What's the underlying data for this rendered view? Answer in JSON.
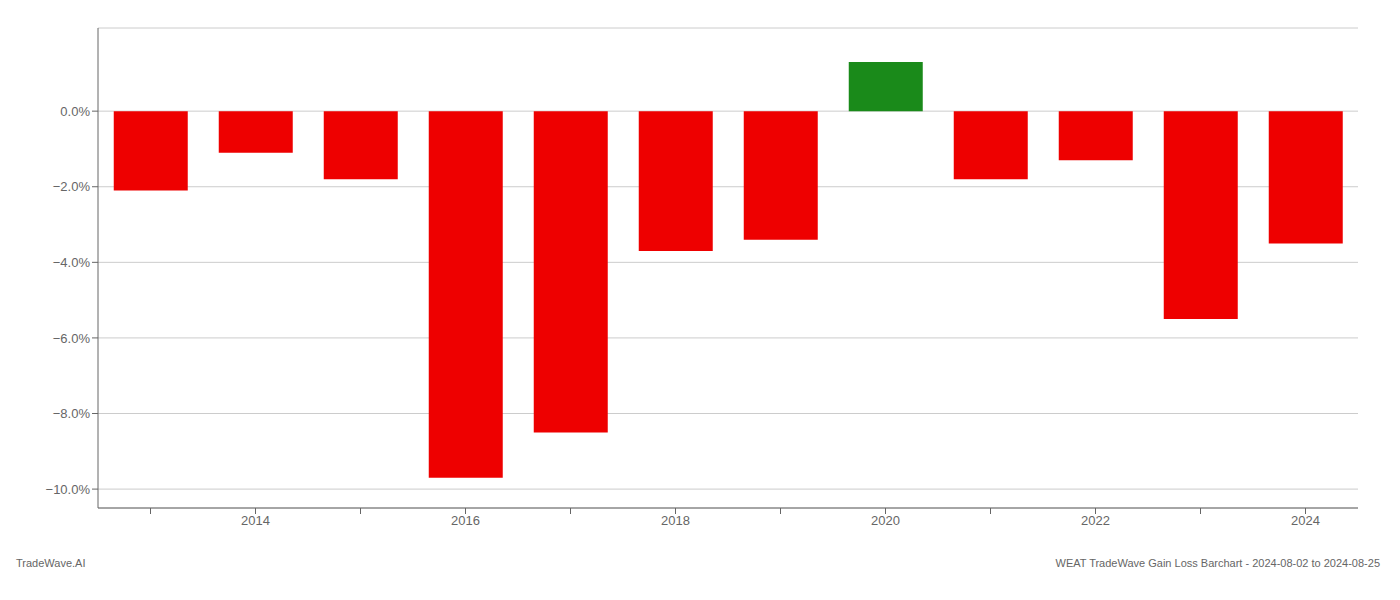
{
  "chart_data": {
    "type": "bar",
    "categories": [
      null,
      "2014",
      null,
      "2016",
      null,
      "2018",
      null,
      "2020",
      null,
      "2022",
      null,
      "2024"
    ],
    "values": [
      -0.021,
      -0.011,
      -0.018,
      -0.097,
      -0.085,
      -0.037,
      -0.034,
      0.013,
      -0.018,
      -0.013,
      -0.055,
      -0.035
    ],
    "colors": [
      "#ee0000",
      "#ee0000",
      "#ee0000",
      "#ee0000",
      "#ee0000",
      "#ee0000",
      "#ee0000",
      "#1a8a1a",
      "#ee0000",
      "#ee0000",
      "#ee0000",
      "#ee0000"
    ],
    "ylim": [
      -0.105,
      0.022
    ],
    "yticks": [
      {
        "value": 0.0,
        "label": "0.0%"
      },
      {
        "value": -0.02,
        "label": "−2.0%"
      },
      {
        "value": -0.04,
        "label": "−4.0%"
      },
      {
        "value": -0.06,
        "label": "−6.0%"
      },
      {
        "value": -0.08,
        "label": "−8.0%"
      },
      {
        "value": -0.1,
        "label": "−10.0%"
      }
    ],
    "grid": true,
    "annotations": [
      "TradeWave.AI",
      "WEAT TradeWave Gain Loss Barchart - 2024-08-02 to 2024-08-25"
    ]
  }
}
